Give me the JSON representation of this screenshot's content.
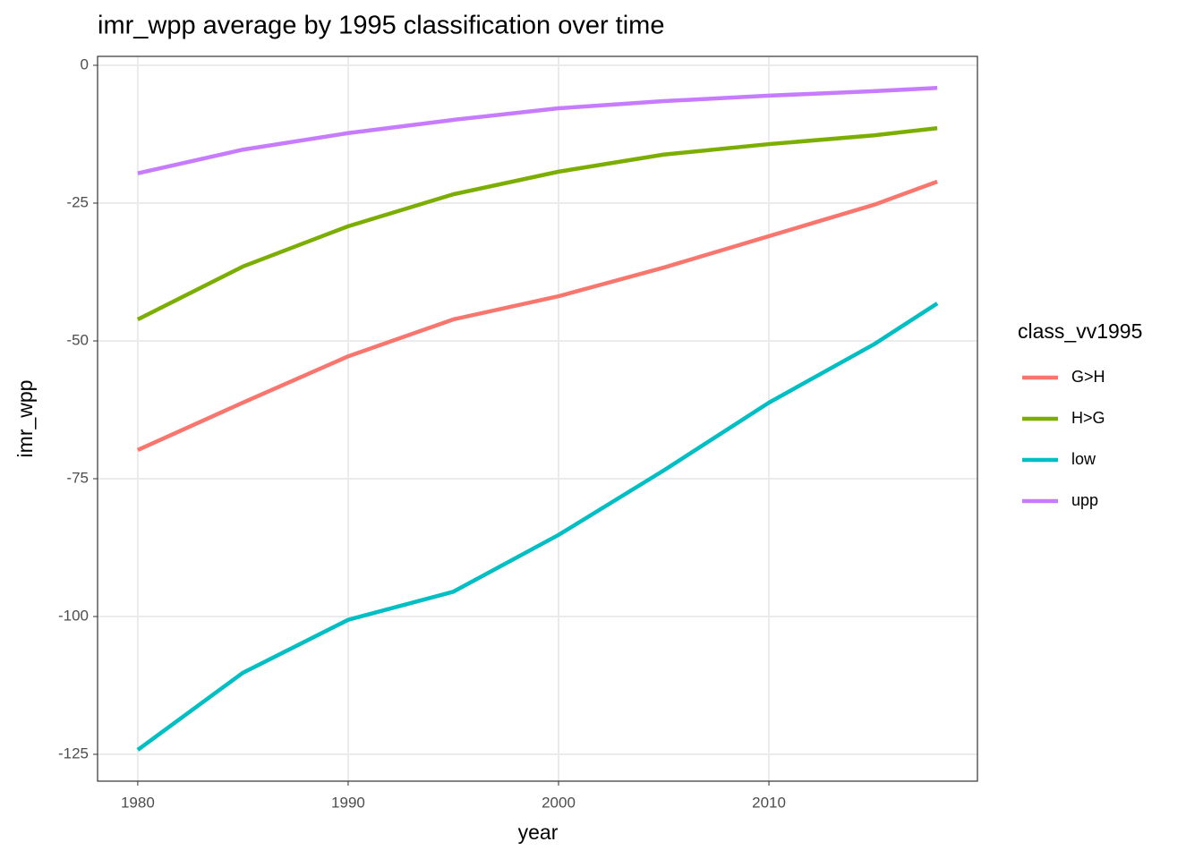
{
  "chart_data": {
    "type": "line",
    "title": "imr_wpp average by 1995 classification over time",
    "x_label": "year",
    "y_label": "imr_wpp",
    "legend_title": "class_vv1995",
    "x": [
      1980,
      1985,
      1990,
      1995,
      2000,
      2005,
      2010,
      2015,
      2018
    ],
    "series": [
      {
        "name": "G>H",
        "color": "#F8766D",
        "values": [
          -69.8,
          -61.2,
          -52.8,
          -46.1,
          -41.9,
          -36.7,
          -31.0,
          -25.3,
          -21.1
        ]
      },
      {
        "name": "H>G",
        "color": "#7CAE00",
        "values": [
          -46.1,
          -36.5,
          -29.2,
          -23.4,
          -19.3,
          -16.2,
          -14.3,
          -12.7,
          -11.4
        ]
      },
      {
        "name": "low",
        "color": "#00BFC4",
        "values": [
          -124.2,
          -110.2,
          -100.6,
          -95.5,
          -85.2,
          -73.5,
          -61.2,
          -50.6,
          -43.2
        ]
      },
      {
        "name": "upp",
        "color": "#C77CFF",
        "values": [
          -19.6,
          -15.3,
          -12.3,
          -9.9,
          -7.8,
          -6.5,
          -5.5,
          -4.7,
          -4.1
        ]
      }
    ],
    "xlim": [
      1978.09,
      2019.91
    ],
    "xticks": [
      1980,
      1990,
      2000,
      2010
    ],
    "ylim": [
      -129.87,
      1.62
    ],
    "yticks": [
      0,
      -25,
      -50,
      -75,
      -100,
      -125
    ],
    "grid": true,
    "legend": "right"
  }
}
